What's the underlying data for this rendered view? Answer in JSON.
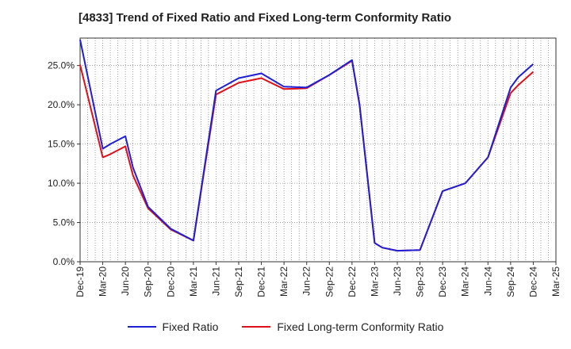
{
  "chart_data": {
    "type": "line",
    "title": "[4833]  Trend of Fixed Ratio and Fixed Long-term Conformity Ratio",
    "xlabel": "",
    "ylabel": "",
    "ylim": [
      0,
      28.5
    ],
    "yticks": [
      "0.0%",
      "5.0%",
      "10.0%",
      "15.0%",
      "20.0%",
      "25.0%"
    ],
    "ytick_values": [
      0,
      5,
      10,
      15,
      20,
      25
    ],
    "grid": true,
    "legend_position": "bottom",
    "x_tick_labels": [
      "Dec-19",
      "Mar-20",
      "Jun-20",
      "Sep-20",
      "Dec-20",
      "Mar-21",
      "Jun-21",
      "Sep-21",
      "Dec-21",
      "Mar-22",
      "Jun-22",
      "Sep-22",
      "Dec-22",
      "Mar-23",
      "Jun-23",
      "Sep-23",
      "Dec-23",
      "Mar-24",
      "Jun-24",
      "Sep-24",
      "Dec-24",
      "Mar-25"
    ],
    "x": [
      "Dec-19",
      "Mar-20",
      "Apr-20",
      "Jun-20",
      "Jul-20",
      "Sep-20",
      "Dec-20",
      "Mar-21",
      "Jun-21",
      "Sep-21",
      "Dec-21",
      "Mar-22",
      "Jun-22",
      "Sep-22",
      "Dec-22",
      "Jan-23",
      "Mar-23",
      "Apr-23",
      "Jun-23",
      "Sep-23",
      "Dec-23",
      "Mar-24",
      "Jun-24",
      "Sep-24",
      "Oct-24",
      "Dec-24"
    ],
    "series": [
      {
        "name": "Fixed Ratio",
        "color": "#1f1fd6",
        "values": [
          28.3,
          14.4,
          15.0,
          16.0,
          12.0,
          7.0,
          4.2,
          2.7,
          21.8,
          23.4,
          24.0,
          22.3,
          22.2,
          23.8,
          25.7,
          20.0,
          2.4,
          1.8,
          1.4,
          1.5,
          9.0,
          10.0,
          13.3,
          22.2,
          23.5,
          25.2
        ]
      },
      {
        "name": "Fixed Long-term Conformity Ratio",
        "color": "#e0101a",
        "values": [
          25.1,
          13.3,
          13.7,
          14.7,
          11.0,
          6.8,
          4.1,
          2.7,
          21.3,
          22.8,
          23.4,
          22.0,
          22.1,
          23.8,
          25.6,
          20.0,
          2.4,
          1.8,
          1.4,
          1.5,
          9.0,
          10.0,
          13.3,
          21.5,
          22.5,
          24.2
        ]
      }
    ]
  }
}
